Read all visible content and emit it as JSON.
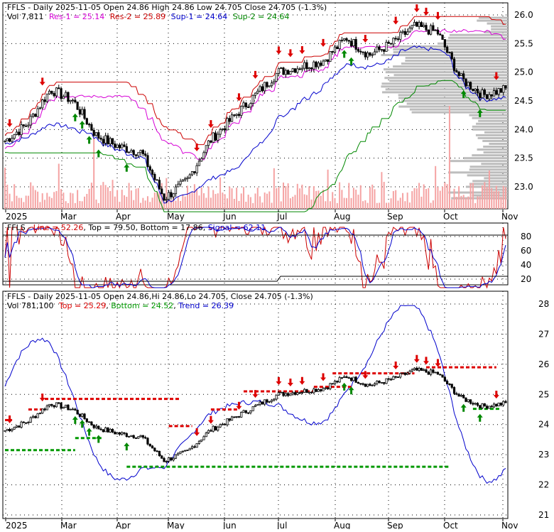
{
  "colors": {
    "frame": "#000000",
    "grid": "#000000",
    "volume": "#f5a3a3",
    "volume_profile": "#bdbdbd",
    "res1": "#d600d6",
    "res2": "#cc0000",
    "sup1": "#0000cc",
    "sup2": "#008800",
    "stoch_line": "#cc0000",
    "stoch_signal": "#0000cc",
    "up_arrow": "#008800",
    "down_arrow": "#dd0000",
    "top_dash": "#dd0000",
    "bottom_dash": "#009900",
    "trend": "#0000cc"
  },
  "months": [
    "2025",
    "Mar",
    "Apr",
    "May",
    "Jun",
    "Jul",
    "Aug",
    "Sep",
    "Oct",
    "Nov"
  ],
  "panel1": {
    "header": {
      "ticker": "FFLS",
      "info": " - Daily 2025-11-05 Open 24.86  High 24.86  Low 24.705  Close 24.705 (-1.3%)",
      "vol": "Vol 7,811",
      "res1": "Res-1 = 25.14",
      "res2": "Res-2 = 25.89",
      "sup1": "Sup-1 = 24.64",
      "sup2": "Sup-2 = 24.64"
    },
    "yticks": [
      "26.0",
      "25.5",
      "25.0",
      "24.5",
      "24.0",
      "23.5",
      "23.0"
    ]
  },
  "panel2": {
    "header": {
      "ticker": "FFLS",
      "line": "Line = 52.26",
      "top": "Top = 79.50",
      "bottom": "Bottom = 17.86",
      "signal": "Signal = 62.11"
    },
    "yticks": [
      "80",
      "60",
      "40",
      "20"
    ]
  },
  "panel3": {
    "header": {
      "info": "FFLS - Daily 2025-11-05 Open 24.86,Hi 24.86,Lo 24.705, Close 24.705 (-1.3%)",
      "vol": "Vol 781,100",
      "top": "Top = 25.29",
      "bottom": "Bottom = 24.52",
      "trend": "Trend = 26.39"
    },
    "yticks": [
      "28",
      "27",
      "26",
      "25",
      "24",
      "23",
      "22",
      "21"
    ]
  },
  "chart_data": {
    "type": "line",
    "ticker": "FFLS",
    "price_approx": {
      "x": [
        "2025-01-06",
        "2025-01-21",
        "2025-02-03",
        "2025-02-18",
        "2025-03-03",
        "2025-03-17",
        "2025-03-31",
        "2025-04-07",
        "2025-04-21",
        "2025-05-05",
        "2025-05-19",
        "2025-06-02",
        "2025-06-16",
        "2025-07-01",
        "2025-07-15",
        "2025-07-28",
        "2025-08-11",
        "2025-08-25",
        "2025-09-08",
        "2025-09-22",
        "2025-10-06",
        "2025-10-20",
        "2025-11-05"
      ],
      "close": [
        23.8,
        24.1,
        24.7,
        24.5,
        23.9,
        23.7,
        23.6,
        22.8,
        23.1,
        23.8,
        24.2,
        24.6,
        25.0,
        25.1,
        25.2,
        25.6,
        25.3,
        25.5,
        25.8,
        25.7,
        24.9,
        24.6,
        24.705
      ]
    },
    "levels": {
      "res1": 25.14,
      "res2": 25.89,
      "sup1": 24.64,
      "sup2": 24.64
    },
    "stochastic": {
      "line": 52.26,
      "top": 79.5,
      "bottom": 17.86,
      "signal": 62.11
    },
    "trend_panel": {
      "top": 25.29,
      "bottom": 24.52,
      "trend": 26.39
    },
    "volume_last": 7811
  }
}
